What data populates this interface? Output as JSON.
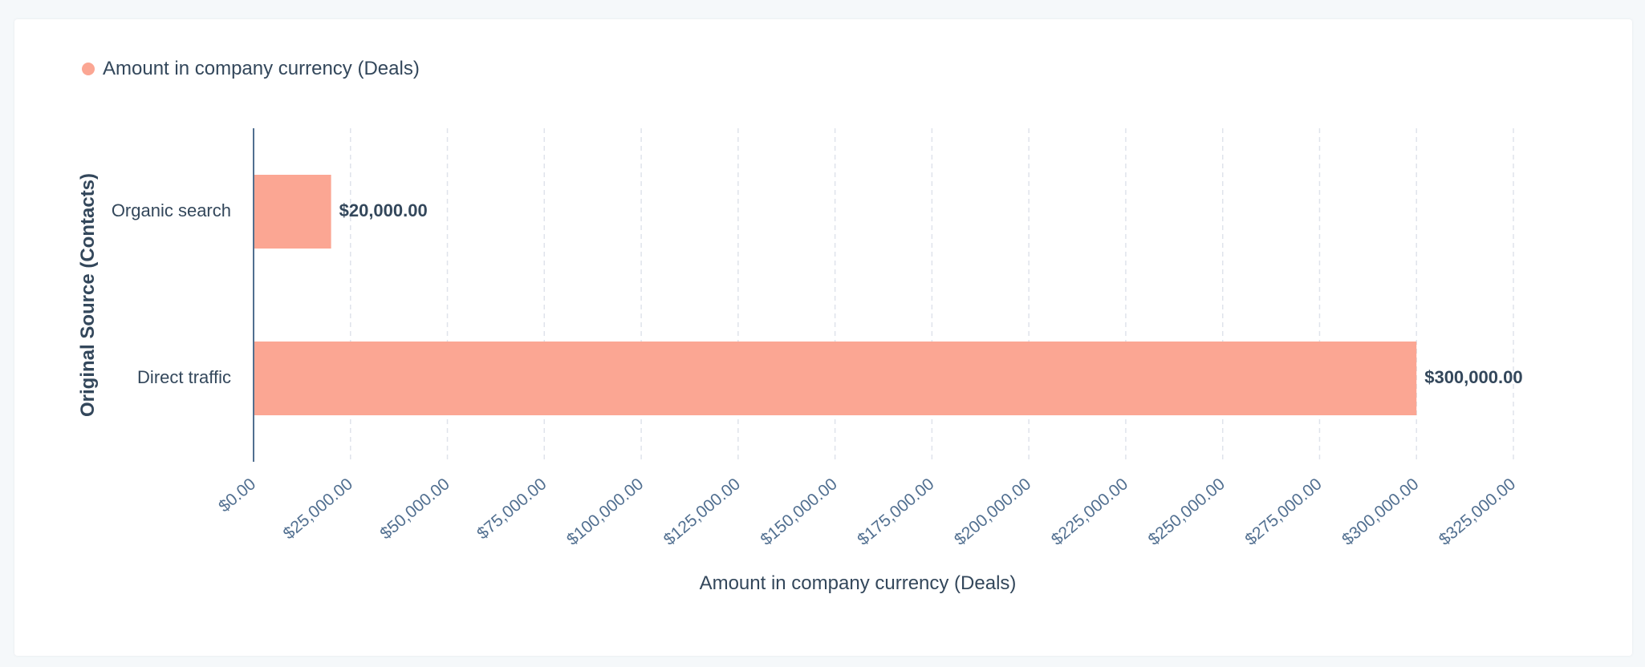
{
  "legend": {
    "label": "Amount in company currency (Deals)",
    "color": "#fba693"
  },
  "chart_data": {
    "type": "bar",
    "orientation": "horizontal",
    "categories": [
      "Organic search",
      "Direct traffic"
    ],
    "series": [
      {
        "name": "Amount in company currency (Deals)",
        "values": [
          20000,
          300000
        ],
        "data_labels": [
          "$20,000.00",
          "$300,000.00"
        ],
        "color": "#fba693"
      }
    ],
    "xlabel": "Amount in company currency (Deals)",
    "ylabel": "Original Source (Contacts)",
    "xlim": [
      0,
      325000
    ],
    "x_ticks": [
      0,
      25000,
      50000,
      75000,
      100000,
      125000,
      150000,
      175000,
      200000,
      225000,
      250000,
      275000,
      300000,
      325000
    ],
    "x_tick_labels": [
      "$0.00",
      "$25,000.00",
      "$50,000.00",
      "$75,000.00",
      "$100,000.00",
      "$125,000.00",
      "$150,000.00",
      "$175,000.00",
      "$200,000.00",
      "$225,000.00",
      "$250,000.00",
      "$275,000.00",
      "$300,000.00",
      "$325,000.00"
    ],
    "grid": true,
    "legend_position": "top-left"
  }
}
